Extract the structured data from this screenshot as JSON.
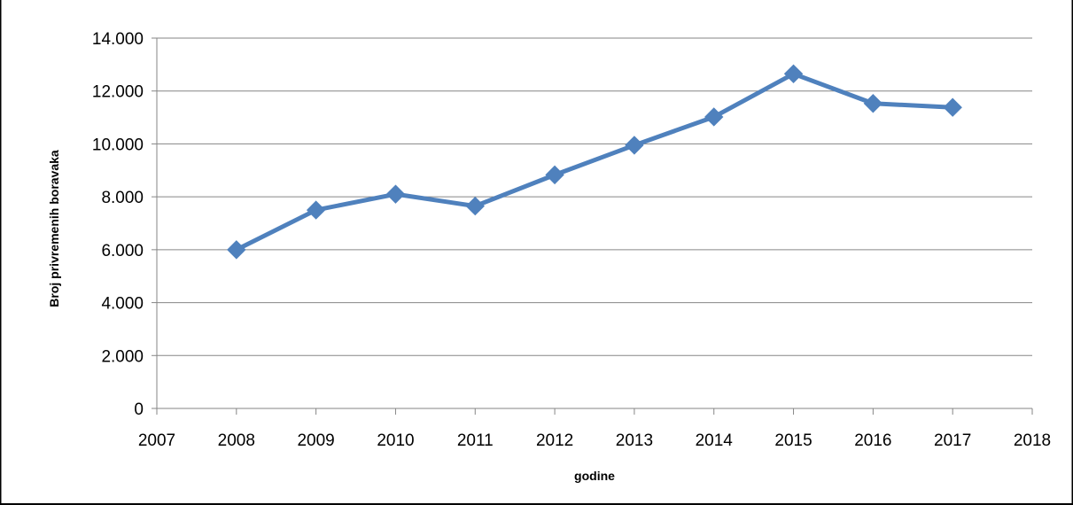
{
  "chart_data": {
    "type": "line",
    "title": "",
    "xlabel": "godine",
    "ylabel": "Broj privremenih boravaka",
    "xlim": [
      2007,
      2018
    ],
    "ylim": [
      0,
      14000
    ],
    "x_ticks": [
      "2007",
      "2008",
      "2009",
      "2010",
      "2011",
      "2012",
      "2013",
      "2014",
      "2015",
      "2016",
      "2017",
      "2018"
    ],
    "y_ticks": [
      "0",
      "2.000",
      "4.000",
      "6.000",
      "8.000",
      "10.000",
      "12.000",
      "14.000"
    ],
    "grid": true,
    "legend": "none",
    "color": "#4F81BD",
    "marker": "diamond",
    "series": [
      {
        "x": [
          2008,
          2009,
          2010,
          2011,
          2012,
          2013,
          2014,
          2015,
          2016,
          2017
        ],
        "values": [
          6000,
          7500,
          8100,
          7650,
          8830,
          9950,
          11020,
          12650,
          11530,
          11380
        ]
      }
    ]
  }
}
